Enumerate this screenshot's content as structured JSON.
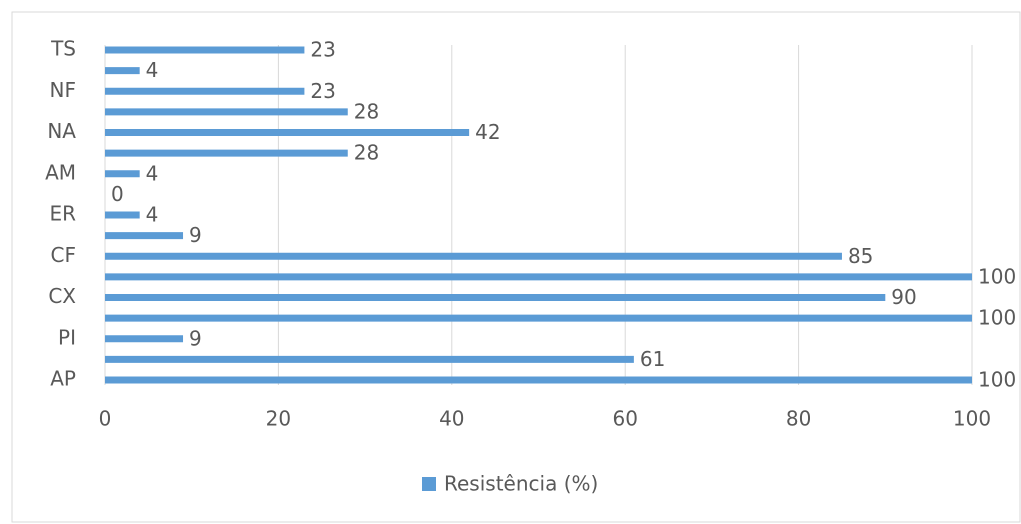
{
  "chart_data": {
    "type": "bar",
    "orientation": "horizontal",
    "categories": [
      "AP",
      null,
      "PI",
      null,
      "CX",
      null,
      "CF",
      null,
      "ER",
      null,
      "AM",
      null,
      "NA",
      null,
      "NF",
      null,
      "TS"
    ],
    "series": [
      {
        "name": "Resistência (%)",
        "color": "#5b9bd5",
        "values": [
          100,
          61,
          9,
          100,
          90,
          100,
          85,
          9,
          4,
          0,
          4,
          28,
          42,
          28,
          23,
          4,
          23
        ]
      }
    ],
    "xlim": [
      0,
      100
    ],
    "xticks": [
      0,
      20,
      40,
      60,
      80,
      100
    ],
    "grid": true,
    "legend": "bottom"
  }
}
